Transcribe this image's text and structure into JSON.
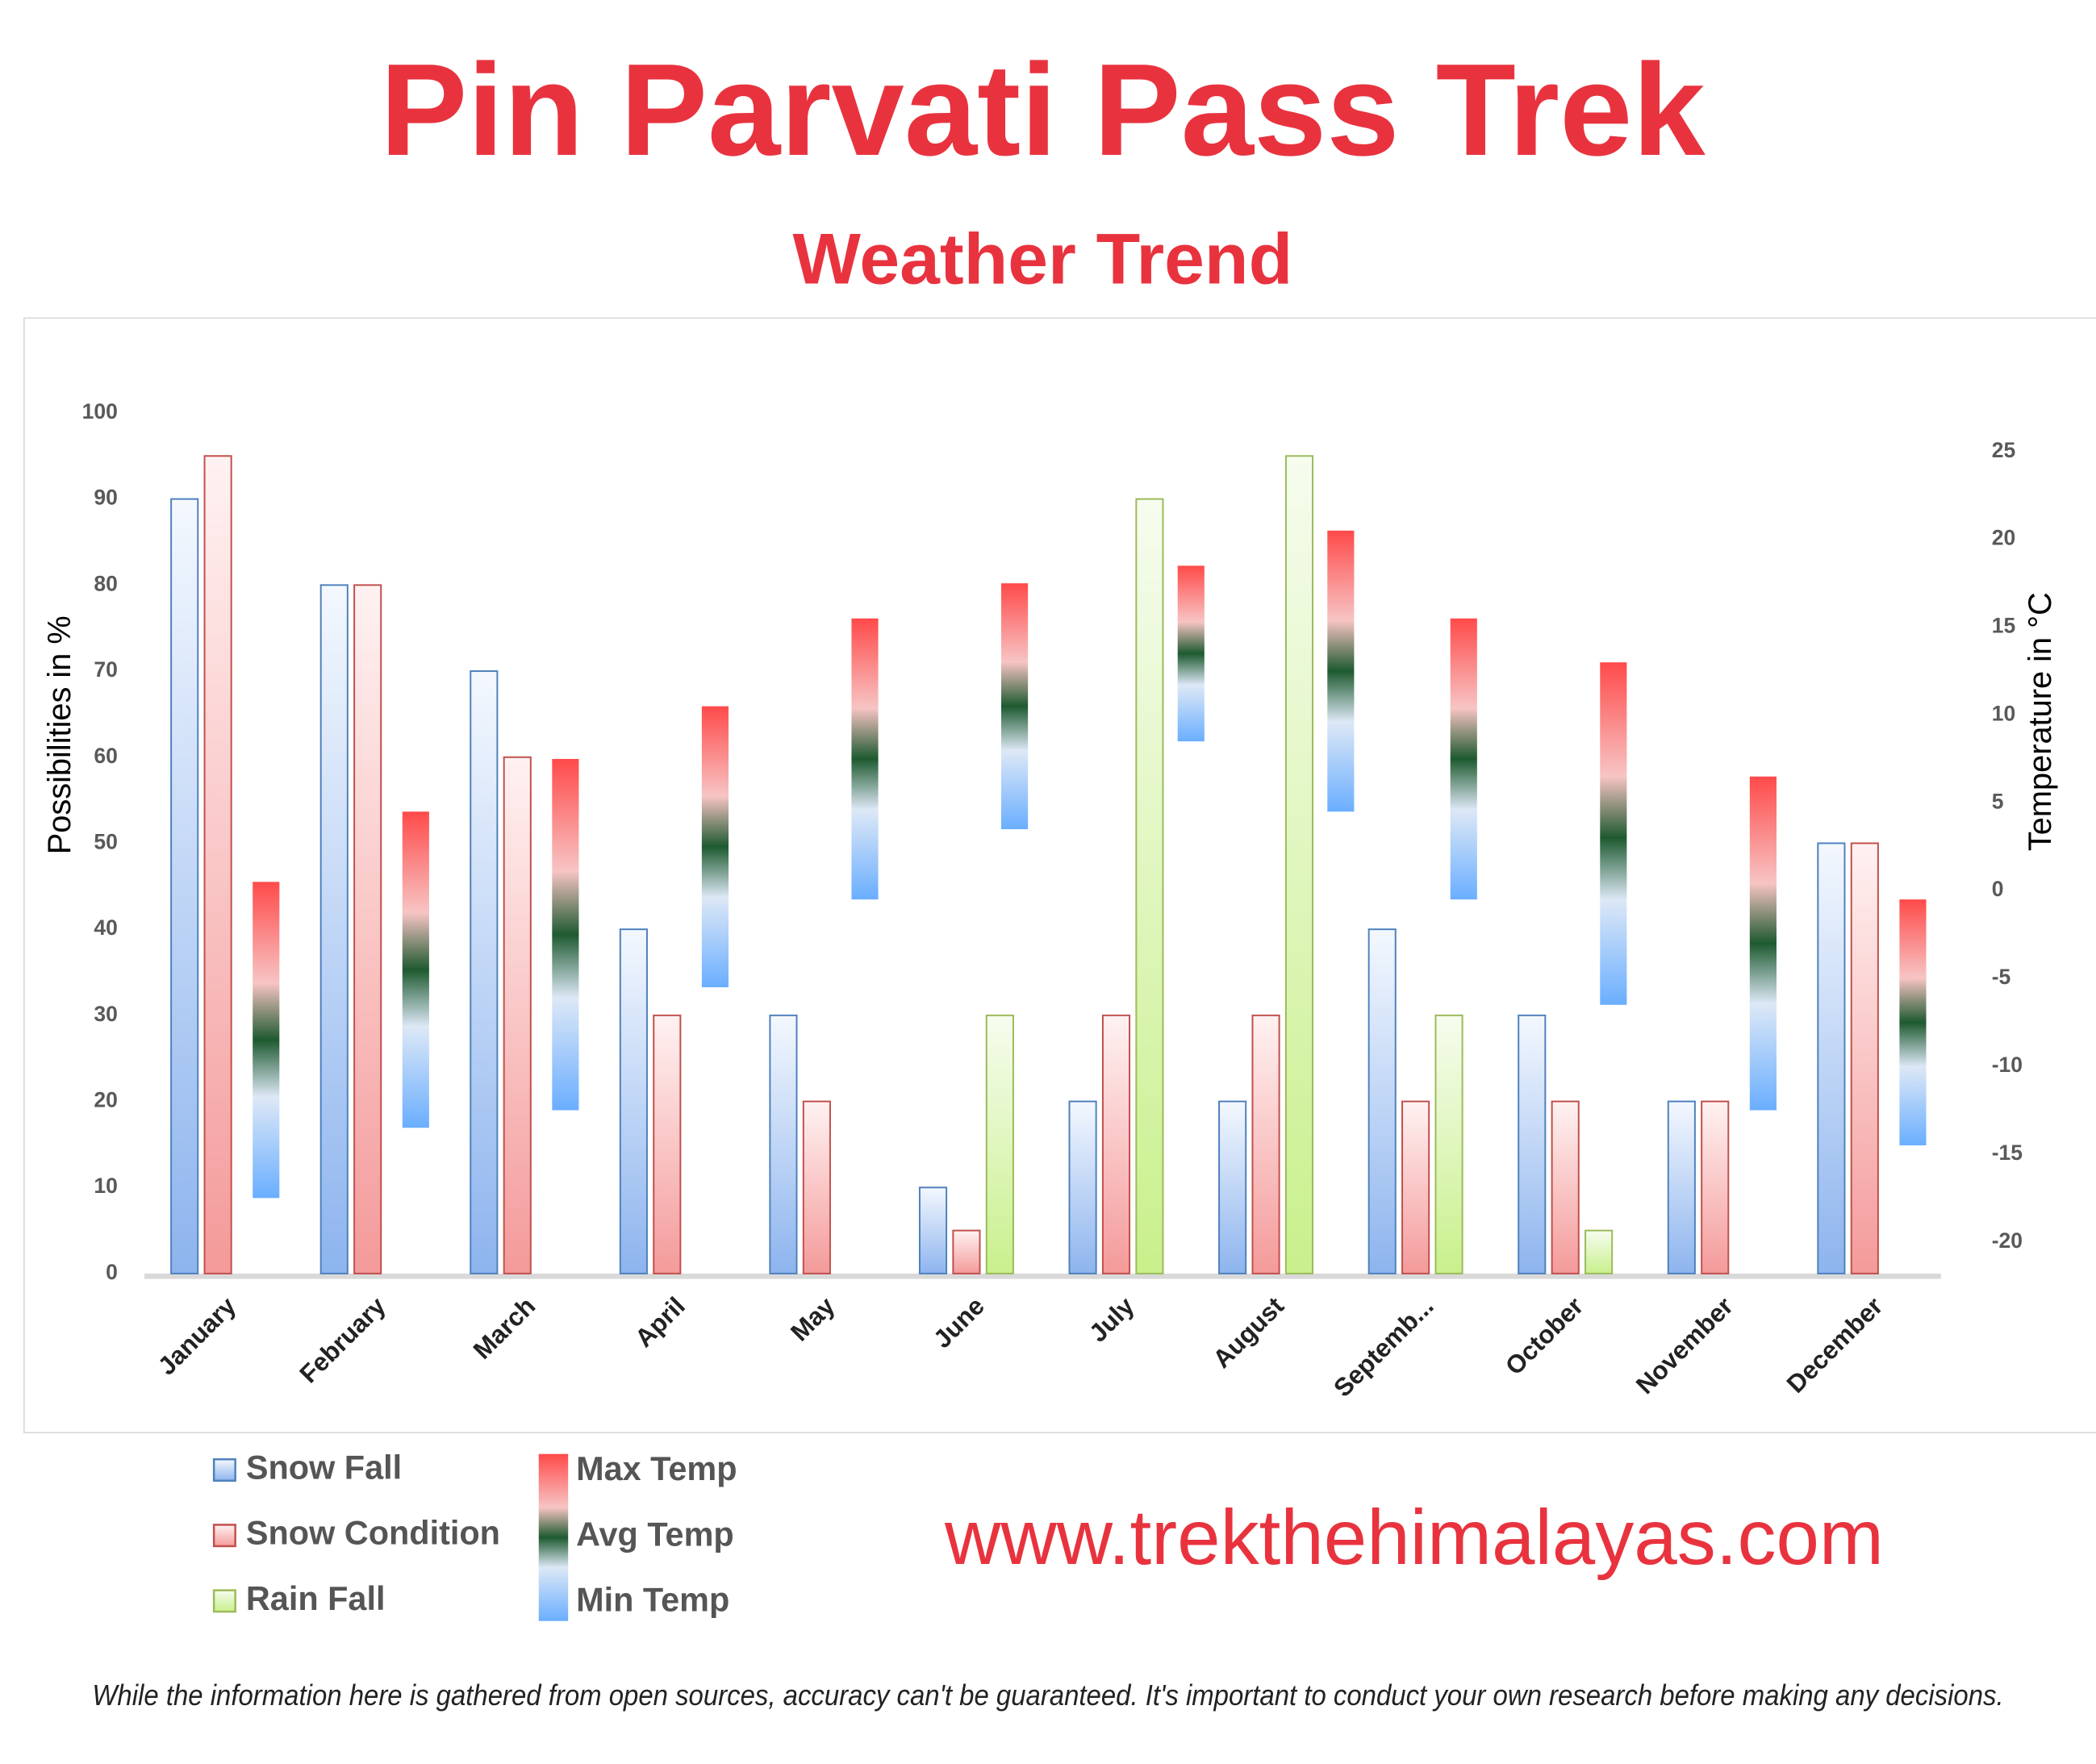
{
  "chart_data": {
    "type": "bar",
    "title": "Pin Parvati Pass Trek",
    "subtitle": "Weather Trend",
    "y_label": "Possibilities in %",
    "y2_label": "Temperature in °C",
    "categories": [
      "January",
      "February",
      "March",
      "April",
      "May",
      "June",
      "July",
      "August",
      "Septemb...",
      "October",
      "November",
      "December"
    ],
    "series": [
      {
        "name": "Snow Fall",
        "color": "#4f81bd",
        "values": [
          90,
          80,
          70,
          40,
          30,
          10,
          20,
          20,
          40,
          30,
          20,
          50
        ]
      },
      {
        "name": "Snow Condition",
        "color": "#c0504d",
        "values": [
          95,
          80,
          60,
          30,
          20,
          5,
          30,
          30,
          20,
          20,
          20,
          50
        ]
      },
      {
        "name": "Rain Fall",
        "color": "#9bbb59",
        "values": [
          null,
          null,
          null,
          null,
          null,
          30,
          90,
          95,
          30,
          5,
          null,
          null
        ]
      },
      {
        "name": "Max Temp",
        "color": "#ff4a4a",
        "axis": "y2",
        "values": [
          0.5,
          4.5,
          7.5,
          10.5,
          15.5,
          17.5,
          18.5,
          20.5,
          15.5,
          13,
          6.5,
          -0.5
        ]
      },
      {
        "name": "Avg Temp",
        "color": "#1e5a30",
        "axis": "y2",
        "values": [
          -8.5,
          -4.5,
          -2.5,
          2.5,
          7.5,
          10.5,
          13.5,
          12.5,
          7.5,
          3,
          -3,
          -7.5
        ]
      },
      {
        "name": "Min Temp",
        "color": "#6aaeff",
        "axis": "y2",
        "values": [
          -17.5,
          -13.5,
          -12.5,
          -5.5,
          -0.5,
          3.5,
          8.5,
          4.5,
          -0.5,
          -6.5,
          -12.5,
          -14.5
        ]
      }
    ],
    "ylim": [
      0,
      100
    ],
    "yticks": [
      0,
      10,
      20,
      30,
      40,
      50,
      60,
      70,
      80,
      90,
      100
    ],
    "y2lim": [
      -21.8,
      27.2
    ],
    "y2ticks": [
      -20,
      -15,
      -10,
      -5,
      0,
      5,
      10,
      15,
      20,
      25
    ],
    "grid": false
  },
  "footer": {
    "url": "www.trekthehimalayas.com",
    "disclaimer": "While the information here is gathered from open sources, accuracy can't be guaranteed. It's important to conduct your own research before making any decisions."
  }
}
